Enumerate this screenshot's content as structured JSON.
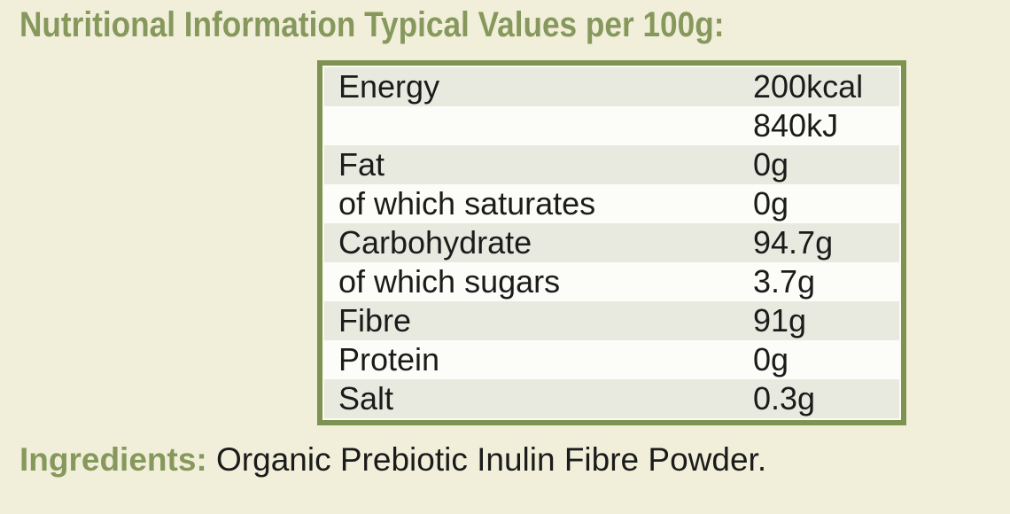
{
  "page": {
    "title": "Nutritional Information Typical Values per 100g:"
  },
  "nutrition_table": {
    "rows": [
      {
        "label": "Energy",
        "value": "200kcal"
      },
      {
        "label": "",
        "value": "840kJ"
      },
      {
        "label": "Fat",
        "value": "0g"
      },
      {
        "label": "of which saturates",
        "value": "0g"
      },
      {
        "label": "Carbohydrate",
        "value": "94.7g"
      },
      {
        "label": "of which sugars",
        "value": "3.7g"
      },
      {
        "label": "Fibre",
        "value": "91g"
      },
      {
        "label": "Protein",
        "value": "0g"
      },
      {
        "label": "Salt",
        "value": "0.3g"
      }
    ]
  },
  "ingredients": {
    "label": "Ingredients:",
    "text": "Organic Prebiotic Inulin Fibre Powder."
  },
  "colors": {
    "background": "#f1efda",
    "accent_green": "#86985c",
    "table_border": "#7e9252",
    "row_tint": "#e8eae0",
    "row_white": "#fcfdf8",
    "text": "#1b1b1b"
  }
}
